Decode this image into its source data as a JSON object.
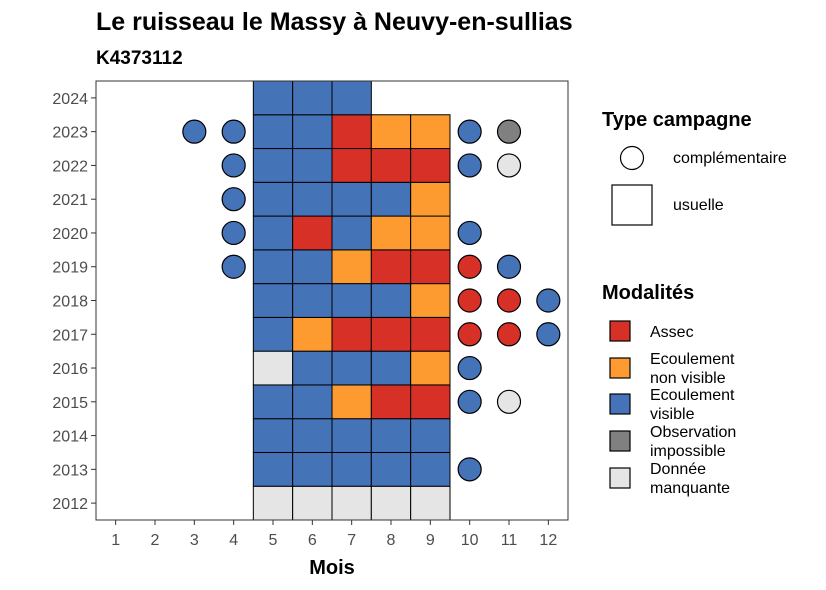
{
  "chart_data": {
    "type": "heatmap",
    "title": "Le ruisseau le Massy à Neuvy-en-sullias",
    "subtitle": "K4373112",
    "xlabel": "Mois",
    "ylabel": "",
    "x_ticks": [
      "1",
      "2",
      "3",
      "4",
      "5",
      "6",
      "7",
      "8",
      "9",
      "10",
      "11",
      "12"
    ],
    "y_ticks": [
      "2012",
      "2013",
      "2014",
      "2015",
      "2016",
      "2017",
      "2018",
      "2019",
      "2020",
      "2021",
      "2022",
      "2023",
      "2024"
    ],
    "xlim": [
      0.5,
      12.5
    ],
    "ylim": [
      2011.5,
      2024.5
    ],
    "grid": false,
    "legend_position": "right",
    "colors": {
      "Assec": "#d73027",
      "Ecoulement non visible": "#fd9b30",
      "Ecoulement visible": "#4573b7",
      "Observation impossible": "#808080",
      "Donnée manquante": "#e5e5e5"
    },
    "legend_type": {
      "title": "Type campagne",
      "items": [
        {
          "key": "complementaire",
          "label": "complémentaire",
          "shape": "circle"
        },
        {
          "key": "usuelle",
          "label": "usuelle",
          "shape": "square"
        }
      ]
    },
    "legend_modalites": {
      "title": "Modalités",
      "items": [
        {
          "key": "Assec",
          "lines": [
            "Assec"
          ]
        },
        {
          "key": "Ecoulement non visible",
          "lines": [
            "Ecoulement",
            "non visible"
          ]
        },
        {
          "key": "Ecoulement visible",
          "lines": [
            "Ecoulement",
            "visible"
          ]
        },
        {
          "key": "Observation impossible",
          "lines": [
            "Observation",
            "impossible"
          ]
        },
        {
          "key": "Donnée manquante",
          "lines": [
            "Donnée",
            "manquante"
          ]
        }
      ]
    },
    "usuelle": {
      "2024": [
        "Ecoulement visible",
        "Ecoulement visible",
        "Ecoulement visible",
        null,
        null
      ],
      "2023": [
        "Ecoulement visible",
        "Ecoulement visible",
        "Assec",
        "Ecoulement non visible",
        "Ecoulement non visible"
      ],
      "2022": [
        "Ecoulement visible",
        "Ecoulement visible",
        "Assec",
        "Assec",
        "Assec"
      ],
      "2021": [
        "Ecoulement visible",
        "Ecoulement visible",
        "Ecoulement visible",
        "Ecoulement visible",
        "Ecoulement non visible"
      ],
      "2020": [
        "Ecoulement visible",
        "Assec",
        "Ecoulement visible",
        "Ecoulement non visible",
        "Ecoulement non visible"
      ],
      "2019": [
        "Ecoulement visible",
        "Ecoulement visible",
        "Ecoulement non visible",
        "Assec",
        "Assec"
      ],
      "2018": [
        "Ecoulement visible",
        "Ecoulement visible",
        "Ecoulement visible",
        "Ecoulement visible",
        "Ecoulement non visible"
      ],
      "2017": [
        "Ecoulement visible",
        "Ecoulement non visible",
        "Assec",
        "Assec",
        "Assec"
      ],
      "2016": [
        "Donnée manquante",
        "Ecoulement visible",
        "Ecoulement visible",
        "Ecoulement visible",
        "Ecoulement non visible"
      ],
      "2015": [
        "Ecoulement visible",
        "Ecoulement visible",
        "Ecoulement non visible",
        "Assec",
        "Assec"
      ],
      "2014": [
        "Ecoulement visible",
        "Ecoulement visible",
        "Ecoulement visible",
        "Ecoulement visible",
        "Ecoulement visible"
      ],
      "2013": [
        "Ecoulement visible",
        "Ecoulement visible",
        "Ecoulement visible",
        "Ecoulement visible",
        "Ecoulement visible"
      ],
      "2012": [
        "Donnée manquante",
        "Donnée manquante",
        "Donnée manquante",
        "Donnée manquante",
        "Donnée manquante"
      ]
    },
    "usuelle_months": [
      5,
      6,
      7,
      8,
      9
    ],
    "complementaire": [
      {
        "year": 2023,
        "month": 3,
        "value": "Ecoulement visible"
      },
      {
        "year": 2023,
        "month": 4,
        "value": "Ecoulement visible"
      },
      {
        "year": 2023,
        "month": 10,
        "value": "Ecoulement visible"
      },
      {
        "year": 2023,
        "month": 11,
        "value": "Observation impossible"
      },
      {
        "year": 2022,
        "month": 4,
        "value": "Ecoulement visible"
      },
      {
        "year": 2022,
        "month": 10,
        "value": "Ecoulement visible"
      },
      {
        "year": 2022,
        "month": 11,
        "value": "Donnée manquante"
      },
      {
        "year": 2021,
        "month": 4,
        "value": "Ecoulement visible"
      },
      {
        "year": 2020,
        "month": 4,
        "value": "Ecoulement visible"
      },
      {
        "year": 2020,
        "month": 10,
        "value": "Ecoulement visible"
      },
      {
        "year": 2019,
        "month": 4,
        "value": "Ecoulement visible"
      },
      {
        "year": 2019,
        "month": 10,
        "value": "Assec"
      },
      {
        "year": 2019,
        "month": 11,
        "value": "Ecoulement visible"
      },
      {
        "year": 2018,
        "month": 10,
        "value": "Assec"
      },
      {
        "year": 2018,
        "month": 11,
        "value": "Assec"
      },
      {
        "year": 2018,
        "month": 12,
        "value": "Ecoulement visible"
      },
      {
        "year": 2017,
        "month": 10,
        "value": "Assec"
      },
      {
        "year": 2017,
        "month": 11,
        "value": "Assec"
      },
      {
        "year": 2017,
        "month": 12,
        "value": "Ecoulement visible"
      },
      {
        "year": 2016,
        "month": 10,
        "value": "Ecoulement visible"
      },
      {
        "year": 2015,
        "month": 10,
        "value": "Ecoulement visible"
      },
      {
        "year": 2015,
        "month": 11,
        "value": "Donnée manquante"
      },
      {
        "year": 2013,
        "month": 10,
        "value": "Ecoulement visible"
      }
    ]
  }
}
